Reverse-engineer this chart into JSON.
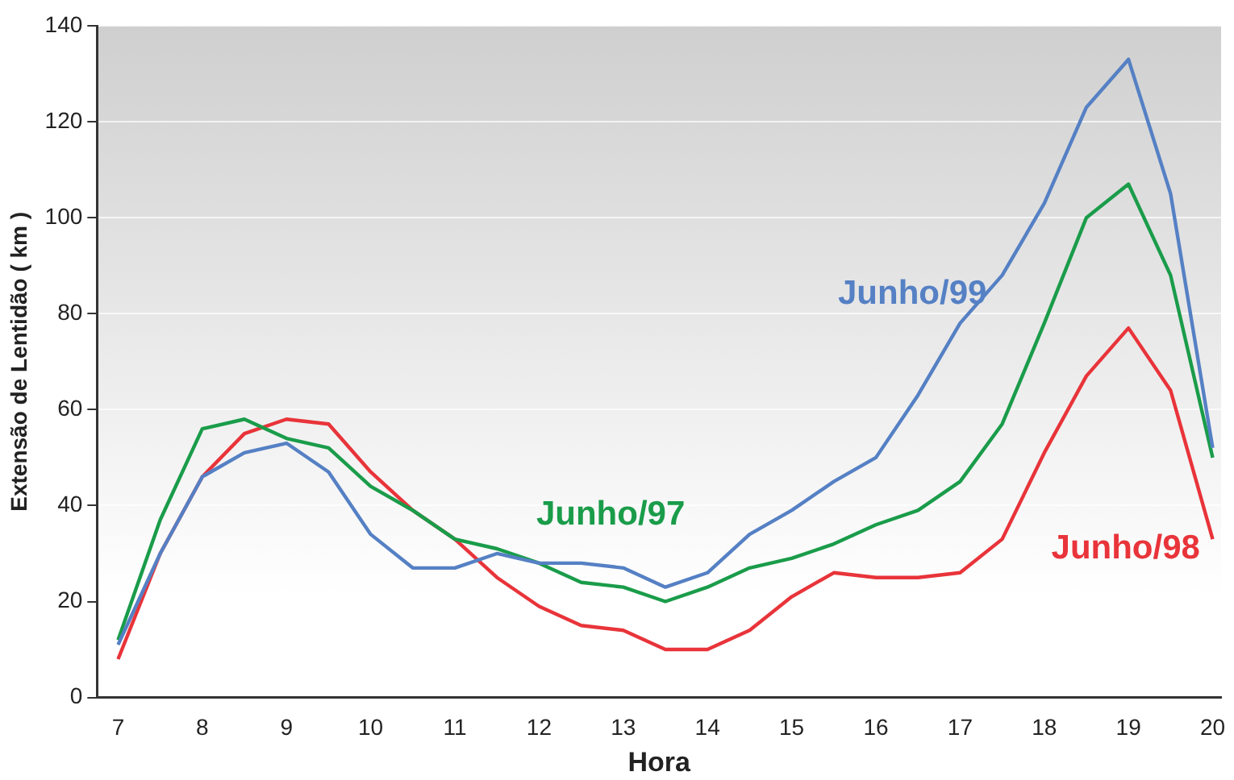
{
  "chart_data": {
    "type": "line",
    "xlabel": "Hora",
    "ylabel": "Extensão de Lentidão ( km )",
    "x": [
      7,
      7.5,
      8,
      8.5,
      9,
      9.5,
      10,
      10.5,
      11,
      11.5,
      12,
      12.5,
      13,
      13.5,
      14,
      14.5,
      15,
      15.5,
      16,
      16.5,
      17,
      17.5,
      18,
      18.5,
      19,
      19.5,
      20
    ],
    "series": [
      {
        "name": "Junho/99",
        "color": "#5580c4",
        "values": [
          11,
          30,
          46,
          51,
          53,
          47,
          34,
          27,
          27,
          30,
          28,
          28,
          27,
          23,
          26,
          34,
          39,
          45,
          50,
          63,
          78,
          88,
          103,
          123,
          133,
          105,
          52
        ]
      },
      {
        "name": "Junho/97",
        "color": "#1a9c4a",
        "values": [
          12,
          37,
          56,
          58,
          54,
          52,
          44,
          39,
          33,
          31,
          28,
          24,
          23,
          20,
          23,
          27,
          29,
          32,
          36,
          39,
          45,
          57,
          78,
          100,
          107,
          88,
          50
        ]
      },
      {
        "name": "Junho/98",
        "color": "#e8343a",
        "values": [
          8,
          30,
          46,
          55,
          58,
          57,
          47,
          39,
          33,
          25,
          19,
          15,
          14,
          10,
          10,
          14,
          21,
          26,
          25,
          25,
          26,
          33,
          51,
          67,
          77,
          64,
          33
        ]
      }
    ],
    "xlim": [
      6.75,
      20.1
    ],
    "xticks": [
      7,
      8,
      9,
      10,
      11,
      12,
      13,
      14,
      15,
      16,
      17,
      18,
      19,
      20
    ],
    "ylim": [
      0,
      140
    ],
    "yticks": [
      0,
      20,
      40,
      60,
      80,
      100,
      120,
      140
    ],
    "grid": "y",
    "legend": false,
    "marker": "none",
    "line_style": "solid"
  }
}
